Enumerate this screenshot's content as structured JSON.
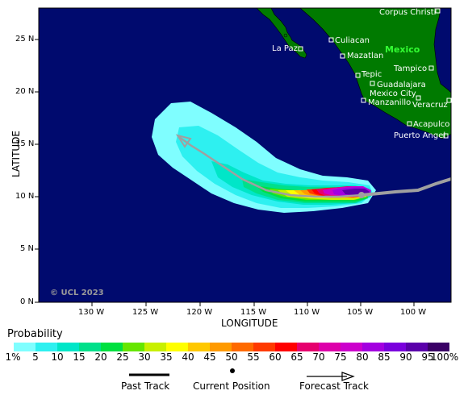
{
  "map": {
    "copyright": "© UCL 2023",
    "axes": {
      "x_title": "LONGITUDE",
      "y_title": "LATITUDE",
      "x_ticks": [
        "130 W",
        "125 W",
        "120 W",
        "115 W",
        "110 W",
        "105 W",
        "100 W"
      ],
      "y_ticks": [
        "25 N",
        "20 N",
        "15 N",
        "10 N",
        "5 N",
        "0 N"
      ]
    },
    "country_label": "Mexico",
    "cities": [
      {
        "name": "Corpus Christi"
      },
      {
        "name": "Culiacan"
      },
      {
        "name": "La Paz"
      },
      {
        "name": "Mazatlan"
      },
      {
        "name": "Tampico"
      },
      {
        "name": "Tepic"
      },
      {
        "name": "Guadalajara"
      },
      {
        "name": "Mexico City"
      },
      {
        "name": "Manzanillo"
      },
      {
        "name": "Veracruz"
      },
      {
        "name": "Acapulco"
      },
      {
        "name": "Puerto Angel"
      }
    ],
    "colors": {
      "ocean": "#000a6e",
      "land": "#007a00",
      "country_label": "#33ff33",
      "track": "#a0a0a0"
    }
  },
  "legend": {
    "title": "Probability",
    "labels": [
      "1%",
      "5",
      "10",
      "15",
      "20",
      "25",
      "30",
      "35",
      "40",
      "45",
      "50",
      "55",
      "60",
      "65",
      "70",
      "75",
      "80",
      "85",
      "90",
      "95",
      "100%"
    ],
    "colors": [
      "#7ffeff",
      "#2ef0f0",
      "#00e6c8",
      "#00e08a",
      "#00e040",
      "#66e600",
      "#c8f000",
      "#ffff00",
      "#ffc800",
      "#ff9a00",
      "#ff6a00",
      "#ff3a00",
      "#ff0000",
      "#e6006e",
      "#dd00aa",
      "#cc00cc",
      "#a300e0",
      "#7a00dd",
      "#5a00aa",
      "#3a0066"
    ],
    "keys": {
      "past_track": "Past Track",
      "current_position": "Current Position",
      "forecast_track": "Forecast Track"
    }
  }
}
